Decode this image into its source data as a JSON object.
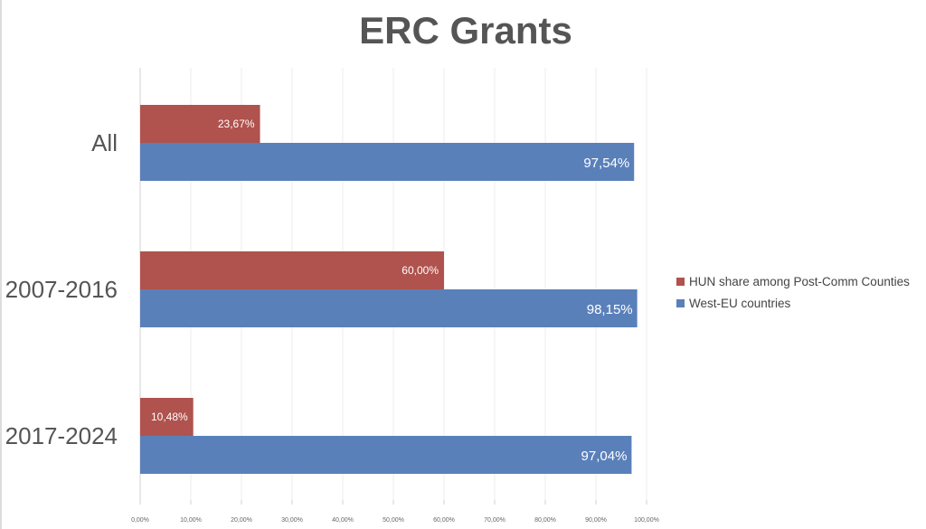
{
  "chart_data": {
    "type": "bar",
    "orientation": "horizontal",
    "title": "ERC Grants",
    "categories": [
      "All",
      "2007-2016",
      "2017-2024"
    ],
    "series": [
      {
        "name": "HUN share among Post-Comm Counties",
        "color": "#B0524D",
        "values": [
          23.67,
          60.0,
          10.48
        ],
        "labels": [
          "23,67%",
          "60,00%",
          "10,48%"
        ]
      },
      {
        "name": "West-EU countries",
        "color": "#5A80BA",
        "values": [
          97.54,
          98.15,
          97.04
        ],
        "labels": [
          "97,54%",
          "98,15%",
          "97,04%"
        ]
      }
    ],
    "xlim": [
      0,
      100
    ],
    "xticks": [
      "0,00%",
      "10,00%",
      "20,00%",
      "30,00%",
      "40,00%",
      "50,00%",
      "60,00%",
      "70,00%",
      "80,00%",
      "90,00%",
      "100,00%"
    ],
    "grid": true,
    "legend": "right"
  }
}
